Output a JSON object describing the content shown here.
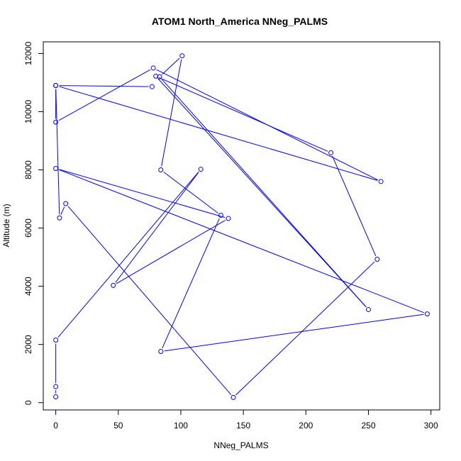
{
  "chart_data": {
    "type": "line",
    "title": "ATOM1 North_America NNeg_PALMS",
    "xlabel": "NNeg_PALMS",
    "ylabel": "Altitude (m)",
    "xlim": [
      -10,
      307
    ],
    "ylim": [
      -250,
      12400
    ],
    "xticks": [
      0,
      50,
      100,
      150,
      200,
      250,
      300
    ],
    "yticks": [
      0,
      2000,
      4000,
      6000,
      8000,
      10000,
      12000
    ],
    "grid": false,
    "legend": "none",
    "series_color": "#0000ff",
    "series": [
      {
        "x": [
          0,
          0,
          0,
          116,
          46,
          138,
          0,
          297,
          84,
          132,
          84,
          101,
          83,
          250,
          80,
          220,
          257,
          142,
          8,
          3,
          0,
          0,
          78,
          260,
          0,
          77
        ],
        "y": [
          200,
          550,
          2150,
          8020,
          4030,
          6330,
          8050,
          3050,
          1760,
          6440,
          8000,
          11920,
          11200,
          3200,
          11220,
          8590,
          4930,
          180,
          6840,
          6350,
          10900,
          9640,
          11500,
          7600,
          10900,
          10860
        ]
      }
    ]
  }
}
